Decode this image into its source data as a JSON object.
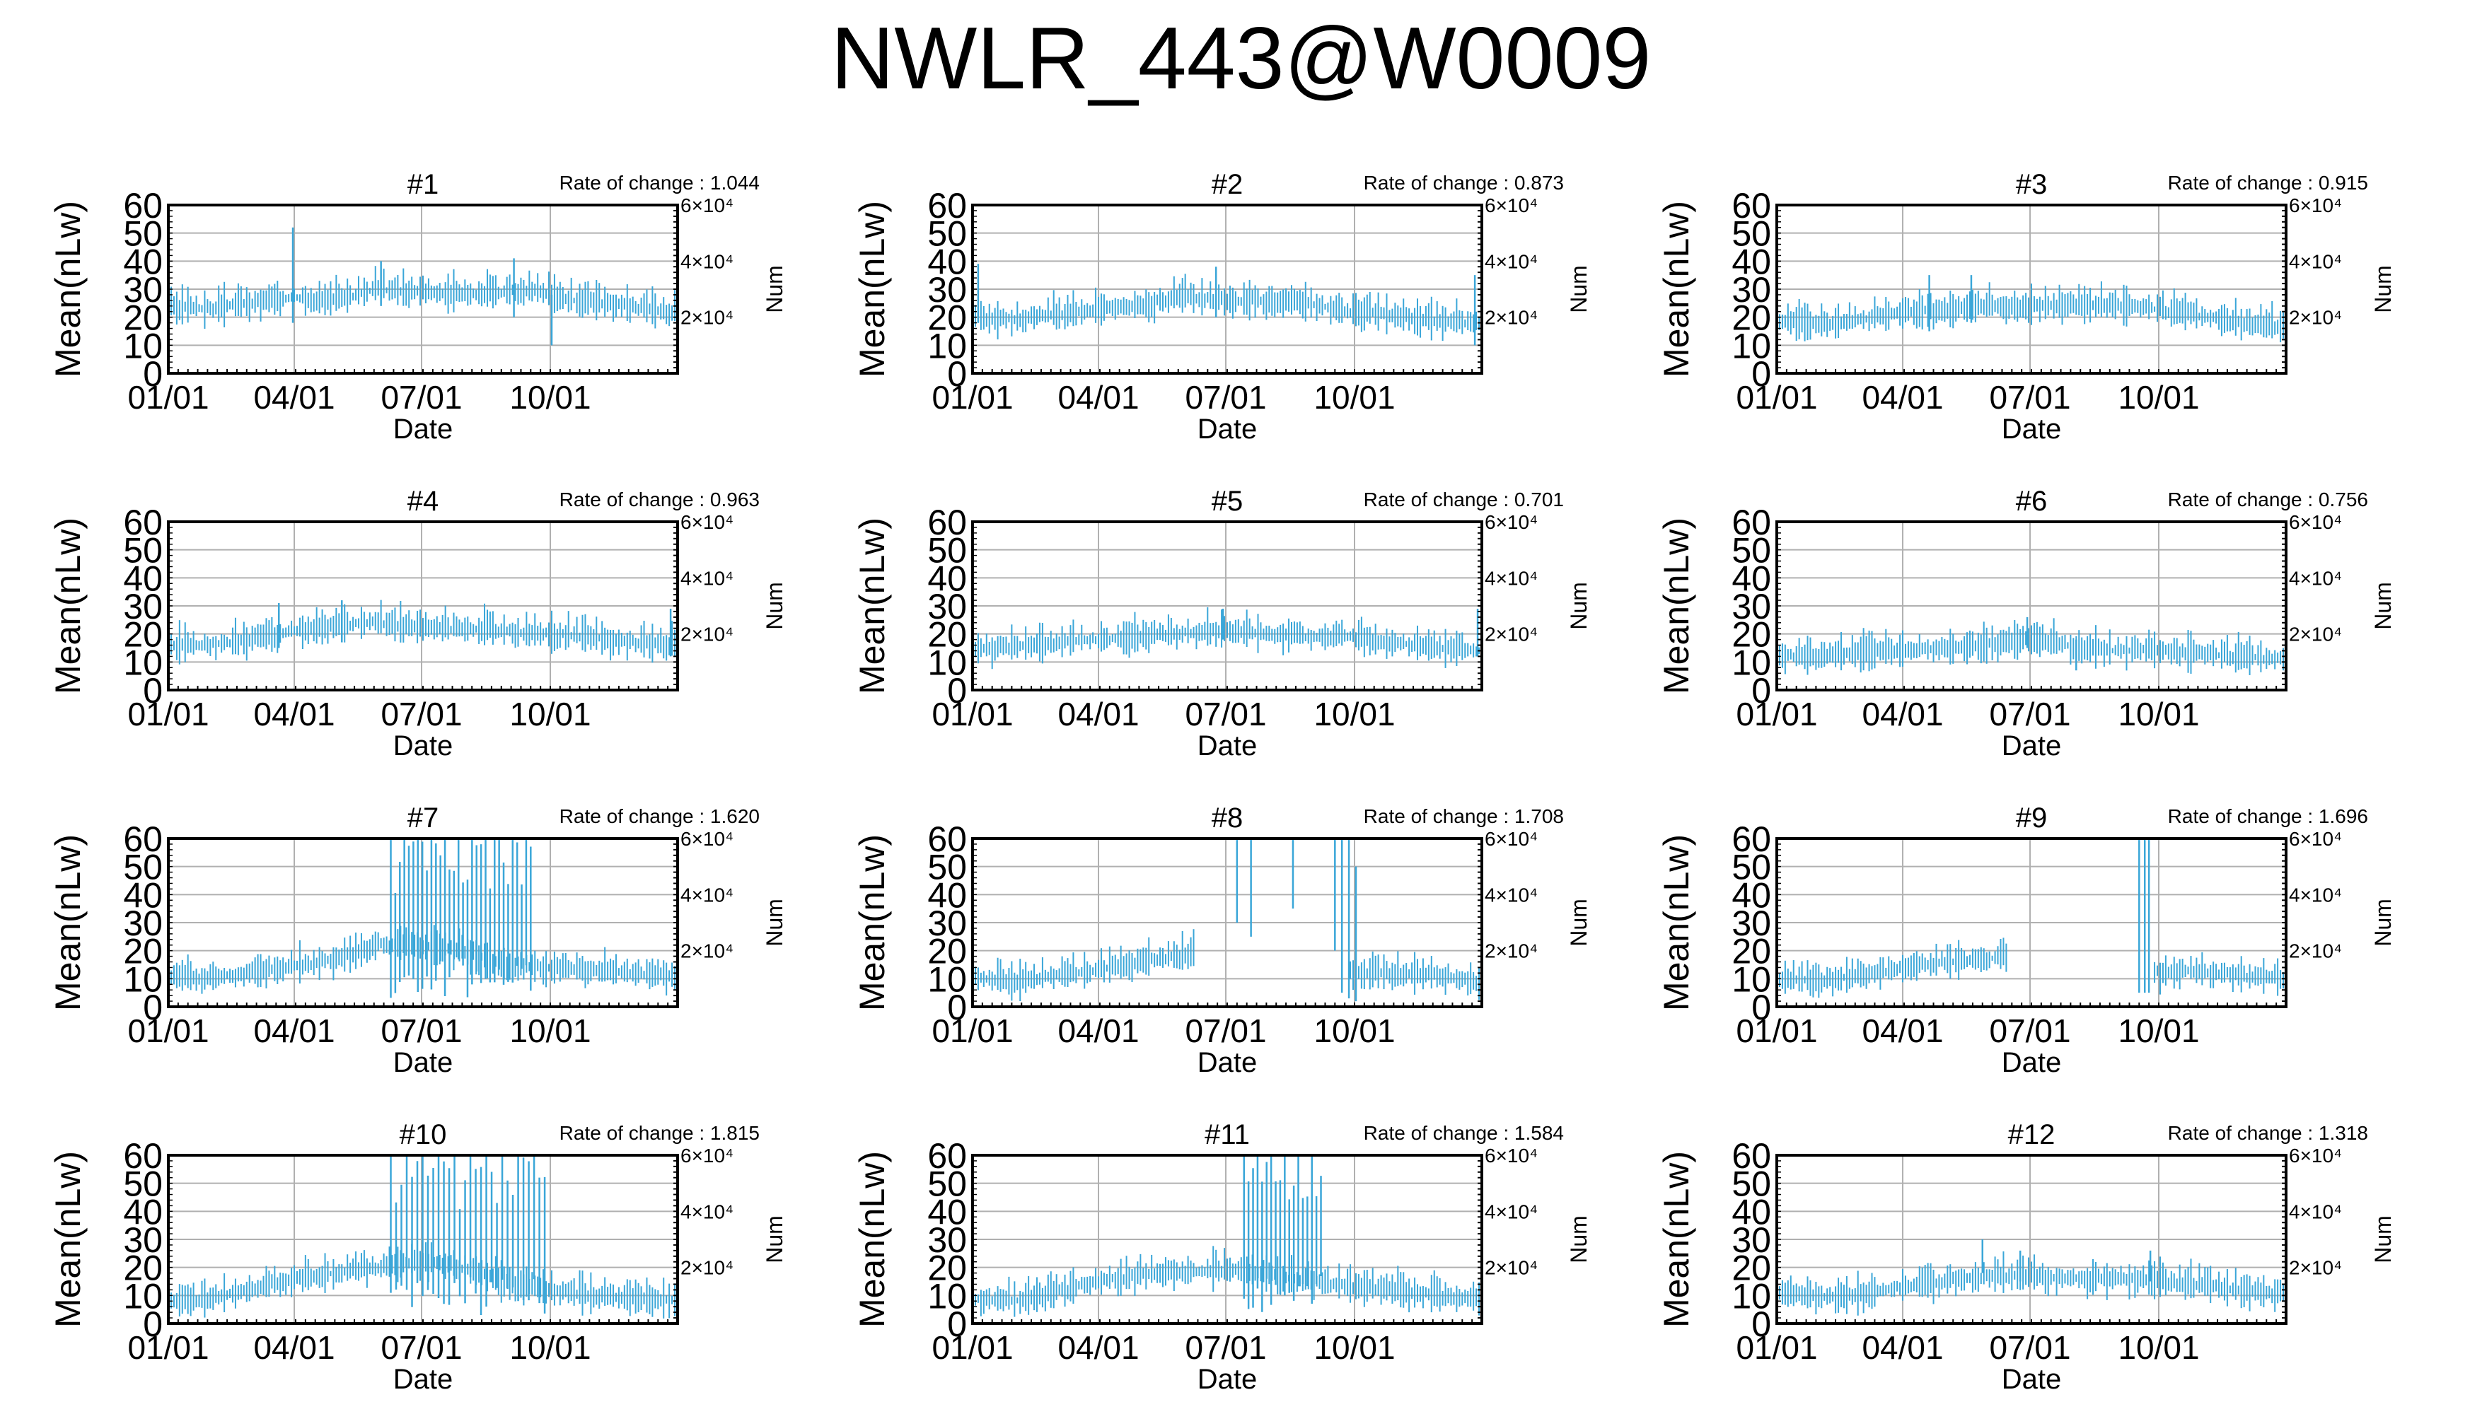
{
  "title": "NWLR_443@W0009",
  "colors": {
    "series": "#3aa6d8",
    "grid": "#b0b0b0",
    "axis": "#000000"
  },
  "chart_data": [
    {
      "type": "line",
      "panel": "#1",
      "rate_label": "Rate of change : 1.044",
      "ylabel": "Mean(nLw)",
      "xlabel": "Date",
      "y2label": "Num",
      "xticks": [
        "01/01",
        "04/01",
        "07/01",
        "10/01"
      ],
      "yticks": [
        "0",
        "10",
        "20",
        "30",
        "40",
        "50",
        "60"
      ],
      "y2ticks": [
        "2×10⁴",
        "4×10⁴",
        "6×10⁴"
      ],
      "ylim": [
        0,
        60
      ],
      "grid": true,
      "mean_curve": [
        [
          1,
          24
        ],
        [
          30,
          23
        ],
        [
          60,
          25
        ],
        [
          90,
          27
        ],
        [
          120,
          26
        ],
        [
          150,
          30
        ],
        [
          180,
          29
        ],
        [
          210,
          28
        ],
        [
          240,
          29
        ],
        [
          260,
          30
        ],
        [
          290,
          26
        ],
        [
          320,
          25
        ],
        [
          350,
          22
        ],
        [
          365,
          22
        ]
      ],
      "spikes": [
        {
          "day": 90,
          "low": 18,
          "high": 52
        },
        {
          "day": 153,
          "low": 24,
          "high": 40
        },
        {
          "day": 248,
          "low": 20,
          "high": 41
        },
        {
          "day": 275,
          "low": 10,
          "high": 28
        }
      ]
    },
    {
      "type": "line",
      "panel": "#2",
      "rate_label": "Rate of change : 0.873",
      "ylabel": "Mean(nLw)",
      "xlabel": "Date",
      "y2label": "Num",
      "xticks": [
        "01/01",
        "04/01",
        "07/01",
        "10/01"
      ],
      "yticks": [
        "0",
        "10",
        "20",
        "30",
        "40",
        "50",
        "60"
      ],
      "y2ticks": [
        "2×10⁴",
        "4×10⁴",
        "6×10⁴"
      ],
      "ylim": [
        0,
        60
      ],
      "grid": true,
      "mean_curve": [
        [
          1,
          20
        ],
        [
          30,
          19
        ],
        [
          60,
          21
        ],
        [
          90,
          23
        ],
        [
          120,
          24
        ],
        [
          150,
          27
        ],
        [
          180,
          26
        ],
        [
          210,
          26
        ],
        [
          240,
          25
        ],
        [
          270,
          22
        ],
        [
          300,
          21
        ],
        [
          330,
          19
        ],
        [
          365,
          18
        ]
      ],
      "spikes": [
        {
          "day": 5,
          "low": 18,
          "high": 39
        },
        {
          "day": 175,
          "low": 20,
          "high": 38
        },
        {
          "day": 360,
          "low": 10,
          "high": 35
        }
      ]
    },
    {
      "type": "line",
      "panel": "#3",
      "rate_label": "Rate of change : 0.915",
      "ylabel": "Mean(nLw)",
      "xlabel": "Date",
      "y2label": "Num",
      "xticks": [
        "01/01",
        "04/01",
        "07/01",
        "10/01"
      ],
      "yticks": [
        "0",
        "10",
        "20",
        "30",
        "40",
        "50",
        "60"
      ],
      "y2ticks": [
        "2×10⁴",
        "4×10⁴",
        "6×10⁴"
      ],
      "ylim": [
        0,
        60
      ],
      "grid": true,
      "mean_curve": [
        [
          1,
          19
        ],
        [
          30,
          17
        ],
        [
          60,
          19
        ],
        [
          90,
          22
        ],
        [
          120,
          22
        ],
        [
          150,
          24
        ],
        [
          180,
          24
        ],
        [
          210,
          24
        ],
        [
          240,
          24
        ],
        [
          270,
          23
        ],
        [
          300,
          21
        ],
        [
          330,
          18
        ],
        [
          365,
          16
        ]
      ],
      "spikes": [
        {
          "day": 110,
          "low": 15,
          "high": 35
        },
        {
          "day": 140,
          "low": 18,
          "high": 35
        }
      ]
    },
    {
      "type": "line",
      "panel": "#4",
      "rate_label": "Rate of change : 0.963",
      "ylabel": "Mean(nLw)",
      "xlabel": "Date",
      "y2label": "Num",
      "xticks": [
        "01/01",
        "04/01",
        "07/01",
        "10/01"
      ],
      "yticks": [
        "0",
        "10",
        "20",
        "30",
        "40",
        "50",
        "60"
      ],
      "y2ticks": [
        "2×10⁴",
        "4×10⁴",
        "6×10⁴"
      ],
      "ylim": [
        0,
        60
      ],
      "grid": true,
      "mean_curve": [
        [
          1,
          16
        ],
        [
          30,
          16
        ],
        [
          60,
          18
        ],
        [
          90,
          21
        ],
        [
          120,
          23
        ],
        [
          150,
          24
        ],
        [
          180,
          22
        ],
        [
          210,
          22
        ],
        [
          240,
          21
        ],
        [
          270,
          20
        ],
        [
          300,
          19
        ],
        [
          330,
          17
        ],
        [
          365,
          16
        ]
      ],
      "spikes": [
        {
          "day": 80,
          "low": 15,
          "high": 31
        },
        {
          "day": 125,
          "low": 17,
          "high": 32
        },
        {
          "day": 360,
          "low": 12,
          "high": 29
        }
      ]
    },
    {
      "type": "line",
      "panel": "#5",
      "rate_label": "Rate of change : 0.701",
      "ylabel": "Mean(nLw)",
      "xlabel": "Date",
      "y2label": "Num",
      "xticks": [
        "01/01",
        "04/01",
        "07/01",
        "10/01"
      ],
      "yticks": [
        "0",
        "10",
        "20",
        "30",
        "40",
        "50",
        "60"
      ],
      "y2ticks": [
        "2×10⁴",
        "4×10⁴",
        "6×10⁴"
      ],
      "ylim": [
        0,
        60
      ],
      "grid": true,
      "mean_curve": [
        [
          1,
          15
        ],
        [
          30,
          15
        ],
        [
          60,
          17
        ],
        [
          90,
          18
        ],
        [
          120,
          19
        ],
        [
          150,
          20
        ],
        [
          180,
          21
        ],
        [
          210,
          20
        ],
        [
          240,
          19
        ],
        [
          270,
          19
        ],
        [
          300,
          17
        ],
        [
          330,
          15
        ],
        [
          365,
          14
        ]
      ],
      "spikes": [
        {
          "day": 180,
          "low": 18,
          "high": 29
        },
        {
          "day": 362,
          "low": 12,
          "high": 29
        }
      ]
    },
    {
      "type": "line",
      "panel": "#6",
      "rate_label": "Rate of change : 0.756",
      "ylabel": "Mean(nLw)",
      "xlabel": "Date",
      "y2label": "Num",
      "xticks": [
        "01/01",
        "04/01",
        "07/01",
        "10/01"
      ],
      "yticks": [
        "0",
        "10",
        "20",
        "30",
        "40",
        "50",
        "60"
      ],
      "y2ticks": [
        "2×10⁴",
        "4×10⁴",
        "6×10⁴"
      ],
      "ylim": [
        0,
        60
      ],
      "grid": true,
      "mean_curve": [
        [
          1,
          12
        ],
        [
          30,
          12
        ],
        [
          60,
          13
        ],
        [
          90,
          14
        ],
        [
          120,
          15
        ],
        [
          150,
          16
        ],
        [
          180,
          18
        ],
        [
          210,
          16
        ],
        [
          240,
          14
        ],
        [
          270,
          14
        ],
        [
          300,
          13
        ],
        [
          330,
          12
        ],
        [
          365,
          11
        ]
      ],
      "spikes": [
        {
          "day": 180,
          "low": 15,
          "high": 26
        },
        {
          "day": 215,
          "low": 7,
          "high": 18
        }
      ]
    },
    {
      "type": "line",
      "panel": "#7",
      "rate_label": "Rate of change : 1.620",
      "ylabel": "Mean(nLw)",
      "xlabel": "Date",
      "y2label": "Num",
      "xticks": [
        "01/01",
        "04/01",
        "07/01",
        "10/01"
      ],
      "yticks": [
        "0",
        "10",
        "20",
        "30",
        "40",
        "50",
        "60"
      ],
      "y2ticks": [
        "2×10⁴",
        "4×10⁴",
        "6×10⁴"
      ],
      "ylim": [
        0,
        60
      ],
      "grid": true,
      "mean_curve": [
        [
          1,
          11
        ],
        [
          30,
          10
        ],
        [
          60,
          12
        ],
        [
          90,
          14
        ],
        [
          120,
          17
        ],
        [
          150,
          22
        ],
        [
          180,
          22
        ],
        [
          210,
          20
        ],
        [
          240,
          15
        ],
        [
          270,
          14
        ],
        [
          300,
          13
        ],
        [
          330,
          12
        ],
        [
          365,
          11
        ]
      ],
      "wild_ranges": [
        {
          "start": 160,
          "end": 260,
          "low": 3,
          "high": 60,
          "count": 32
        }
      ]
    },
    {
      "type": "line",
      "panel": "#8",
      "rate_label": "Rate of change : 1.708",
      "ylabel": "Mean(nLw)",
      "xlabel": "Date",
      "y2label": "Num",
      "xticks": [
        "01/01",
        "04/01",
        "07/01",
        "10/01"
      ],
      "yticks": [
        "0",
        "10",
        "20",
        "30",
        "40",
        "50",
        "60"
      ],
      "y2ticks": [
        "2×10⁴",
        "4×10⁴",
        "6×10⁴"
      ],
      "ylim": [
        0,
        60
      ],
      "grid": true,
      "mean_curve": [
        [
          1,
          11
        ],
        [
          30,
          9
        ],
        [
          60,
          11
        ],
        [
          90,
          13
        ],
        [
          120,
          16
        ],
        [
          150,
          18
        ],
        [
          160,
          20
        ]
      ],
      "mean_curve_2": [
        [
          270,
          12
        ],
        [
          290,
          12
        ],
        [
          330,
          11
        ],
        [
          365,
          9
        ]
      ],
      "spikes": [
        {
          "day": 190,
          "low": 30,
          "high": 60
        },
        {
          "day": 200,
          "low": 25,
          "high": 60
        },
        {
          "day": 230,
          "low": 35,
          "high": 60
        },
        {
          "day": 260,
          "low": 20,
          "high": 60
        },
        {
          "day": 265,
          "low": 5,
          "high": 60
        },
        {
          "day": 270,
          "low": 3,
          "high": 60
        },
        {
          "day": 275,
          "low": 2,
          "high": 50
        }
      ]
    },
    {
      "type": "line",
      "panel": "#9",
      "rate_label": "Rate of change : 1.696",
      "ylabel": "Mean(nLw)",
      "xlabel": "Date",
      "y2label": "Num",
      "xticks": [
        "01/01",
        "04/01",
        "07/01",
        "10/01"
      ],
      "yticks": [
        "0",
        "10",
        "20",
        "30",
        "40",
        "50",
        "60"
      ],
      "y2ticks": [
        "2×10⁴",
        "4×10⁴",
        "6×10⁴"
      ],
      "ylim": [
        0,
        60
      ],
      "grid": true,
      "mean_curve": [
        [
          1,
          10
        ],
        [
          30,
          9
        ],
        [
          60,
          11
        ],
        [
          90,
          14
        ],
        [
          120,
          16
        ],
        [
          150,
          17
        ],
        [
          165,
          18
        ]
      ],
      "mean_curve_2": [
        [
          270,
          12
        ],
        [
          300,
          13
        ],
        [
          330,
          11
        ],
        [
          365,
          10
        ]
      ],
      "spikes": [
        {
          "day": 260,
          "low": 5,
          "high": 60
        },
        {
          "day": 264,
          "low": 5,
          "high": 60
        },
        {
          "day": 267,
          "low": 5,
          "high": 60
        }
      ]
    },
    {
      "type": "line",
      "panel": "#10",
      "rate_label": "Rate of change : 1.815",
      "ylabel": "Mean(nLw)",
      "xlabel": "Date",
      "y2label": "Num",
      "xticks": [
        "01/01",
        "04/01",
        "07/01",
        "10/01"
      ],
      "yticks": [
        "0",
        "10",
        "20",
        "30",
        "40",
        "50",
        "60"
      ],
      "y2ticks": [
        "2×10⁴",
        "4×10⁴",
        "6×10⁴"
      ],
      "ylim": [
        0,
        60
      ],
      "grid": true,
      "mean_curve": [
        [
          1,
          8
        ],
        [
          30,
          9
        ],
        [
          60,
          12
        ],
        [
          90,
          16
        ],
        [
          120,
          18
        ],
        [
          150,
          20
        ],
        [
          180,
          22
        ],
        [
          210,
          20
        ],
        [
          240,
          15
        ],
        [
          270,
          12
        ],
        [
          300,
          10
        ],
        [
          330,
          9
        ],
        [
          365,
          8
        ]
      ],
      "wild_ranges": [
        {
          "start": 160,
          "end": 270,
          "low": 3,
          "high": 60,
          "count": 30
        }
      ]
    },
    {
      "type": "line",
      "panel": "#11",
      "rate_label": "Rate of change : 1.584",
      "ylabel": "Mean(nLw)",
      "xlabel": "Date",
      "y2label": "Num",
      "xticks": [
        "01/01",
        "04/01",
        "07/01",
        "10/01"
      ],
      "yticks": [
        "0",
        "10",
        "20",
        "30",
        "40",
        "50",
        "60"
      ],
      "y2ticks": [
        "2×10⁴",
        "4×10⁴",
        "6×10⁴"
      ],
      "ylim": [
        0,
        60
      ],
      "grid": true,
      "mean_curve": [
        [
          1,
          9
        ],
        [
          30,
          8
        ],
        [
          60,
          11
        ],
        [
          90,
          15
        ],
        [
          120,
          17
        ],
        [
          150,
          18
        ],
        [
          180,
          19
        ],
        [
          210,
          18
        ],
        [
          240,
          15
        ],
        [
          270,
          13
        ],
        [
          300,
          12
        ],
        [
          330,
          10
        ],
        [
          365,
          9
        ]
      ],
      "wild_ranges": [
        {
          "start": 195,
          "end": 250,
          "low": 3,
          "high": 60,
          "count": 18
        }
      ]
    },
    {
      "type": "line",
      "panel": "#12",
      "rate_label": "Rate of change : 1.318",
      "ylabel": "Mean(nLw)",
      "xlabel": "Date",
      "y2label": "Num",
      "xticks": [
        "01/01",
        "04/01",
        "07/01",
        "10/01"
      ],
      "yticks": [
        "0",
        "10",
        "20",
        "30",
        "40",
        "50",
        "60"
      ],
      "y2ticks": [
        "2×10⁴",
        "4×10⁴",
        "6×10⁴"
      ],
      "ylim": [
        0,
        60
      ],
      "grid": true,
      "mean_curve": [
        [
          1,
          11
        ],
        [
          30,
          9
        ],
        [
          60,
          10
        ],
        [
          90,
          13
        ],
        [
          120,
          15
        ],
        [
          150,
          17
        ],
        [
          180,
          17
        ],
        [
          210,
          16
        ],
        [
          240,
          16
        ],
        [
          270,
          15
        ],
        [
          300,
          14
        ],
        [
          330,
          12
        ],
        [
          365,
          10
        ]
      ],
      "spikes": [
        {
          "day": 148,
          "low": 18,
          "high": 30
        },
        {
          "day": 175,
          "low": 15,
          "high": 26
        },
        {
          "day": 268,
          "low": 15,
          "high": 26
        }
      ]
    }
  ]
}
